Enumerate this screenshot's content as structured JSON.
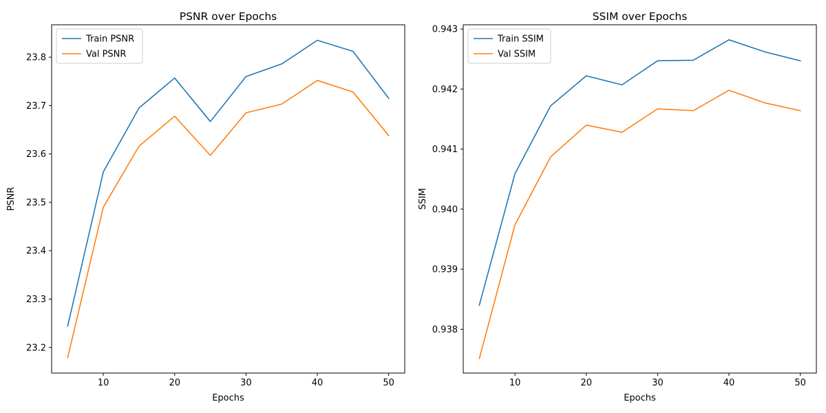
{
  "chart_data": [
    {
      "type": "line",
      "title": "PSNR over Epochs",
      "xlabel": "Epochs",
      "ylabel": "PSNR",
      "x": [
        5,
        10,
        15,
        20,
        25,
        30,
        35,
        40,
        45,
        50
      ],
      "xlim": [
        2.75,
        52.25
      ],
      "ylim": [
        23.147,
        23.867
      ],
      "xticks": [
        10,
        20,
        30,
        40,
        50
      ],
      "yticks": [
        23.2,
        23.3,
        23.4,
        23.5,
        23.6,
        23.7,
        23.8
      ],
      "ytick_labels": [
        "23.2",
        "23.3",
        "23.4",
        "23.5",
        "23.6",
        "23.7",
        "23.8"
      ],
      "grid": false,
      "legend_position": "top-left",
      "series": [
        {
          "name": "Train PSNR",
          "color": "#1f77b4",
          "values": [
            23.244,
            23.563,
            23.695,
            23.757,
            23.667,
            23.76,
            23.786,
            23.835,
            23.812,
            23.715
          ]
        },
        {
          "name": "Val PSNR",
          "color": "#ff7f0e",
          "values": [
            23.179,
            23.49,
            23.616,
            23.678,
            23.597,
            23.685,
            23.703,
            23.752,
            23.728,
            23.638
          ]
        }
      ]
    },
    {
      "type": "line",
      "title": "SSIM over Epochs",
      "xlabel": "Epochs",
      "ylabel": "SSIM",
      "x": [
        5,
        10,
        15,
        20,
        25,
        30,
        35,
        40,
        45,
        50
      ],
      "xlim": [
        2.75,
        52.25
      ],
      "ylim": [
        0.93727,
        0.94307
      ],
      "xticks": [
        10,
        20,
        30,
        40,
        50
      ],
      "yticks": [
        0.938,
        0.939,
        0.94,
        0.941,
        0.942,
        0.943
      ],
      "ytick_labels": [
        "0.938",
        "0.939",
        "0.940",
        "0.941",
        "0.942",
        "0.943"
      ],
      "grid": false,
      "legend_position": "top-left",
      "series": [
        {
          "name": "Train SSIM",
          "color": "#1f77b4",
          "values": [
            0.9384,
            0.94059,
            0.94172,
            0.94222,
            0.94207,
            0.94247,
            0.94248,
            0.94282,
            0.94262,
            0.94247
          ]
        },
        {
          "name": "Val SSIM",
          "color": "#ff7f0e",
          "values": [
            0.93751,
            0.93974,
            0.94087,
            0.9414,
            0.94128,
            0.94167,
            0.94164,
            0.94198,
            0.94177,
            0.94164
          ]
        }
      ]
    }
  ]
}
